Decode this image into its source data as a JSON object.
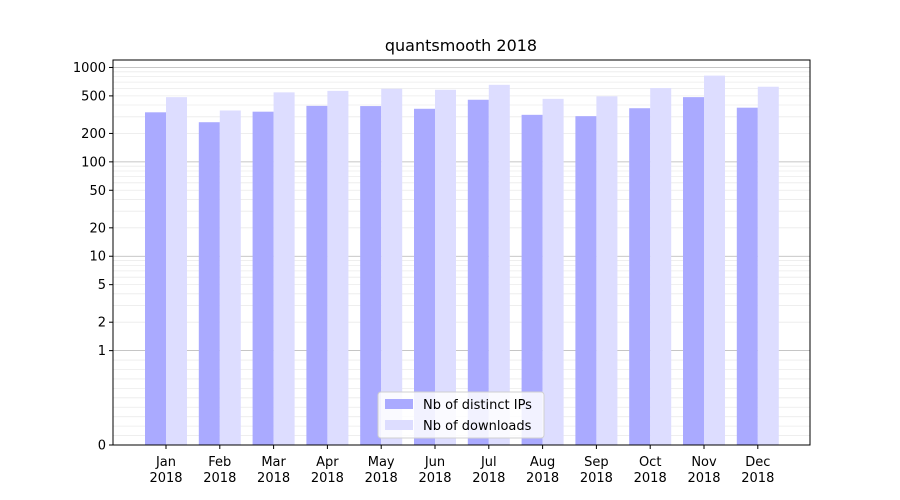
{
  "chart_data": {
    "type": "bar",
    "title": "quantsmooth 2018",
    "categories": [
      "Jan\n2018",
      "Feb\n2018",
      "Mar\n2018",
      "Apr\n2018",
      "May\n2018",
      "Jun\n2018",
      "Jul\n2018",
      "Aug\n2018",
      "Sep\n2018",
      "Oct\n2018",
      "Nov\n2018",
      "Dec\n2018"
    ],
    "series": [
      {
        "name": "Nb of distinct IPs",
        "color": "#aaaaff",
        "values": [
          335,
          263,
          340,
          392,
          390,
          365,
          455,
          315,
          305,
          370,
          485,
          375
        ]
      },
      {
        "name": "Nb of downloads",
        "color": "#ddddff",
        "values": [
          485,
          350,
          545,
          565,
          595,
          580,
          655,
          465,
          495,
          605,
          820,
          625
        ]
      }
    ],
    "y_scale": "symlog",
    "ylim": [
      0,
      1200
    ],
    "y_ticks": [
      {
        "value": 0,
        "label": "0"
      },
      {
        "value": 1,
        "label": "1"
      },
      {
        "value": 2,
        "label": "2"
      },
      {
        "value": 5,
        "label": "5"
      },
      {
        "value": 10,
        "label": "10"
      },
      {
        "value": 20,
        "label": "20"
      },
      {
        "value": 50,
        "label": "50"
      },
      {
        "value": 100,
        "label": "100"
      },
      {
        "value": 200,
        "label": "200"
      },
      {
        "value": 500,
        "label": "500"
      },
      {
        "value": 1000,
        "label": "1000"
      }
    ],
    "grid": true,
    "legend_position": "bottom-center"
  }
}
